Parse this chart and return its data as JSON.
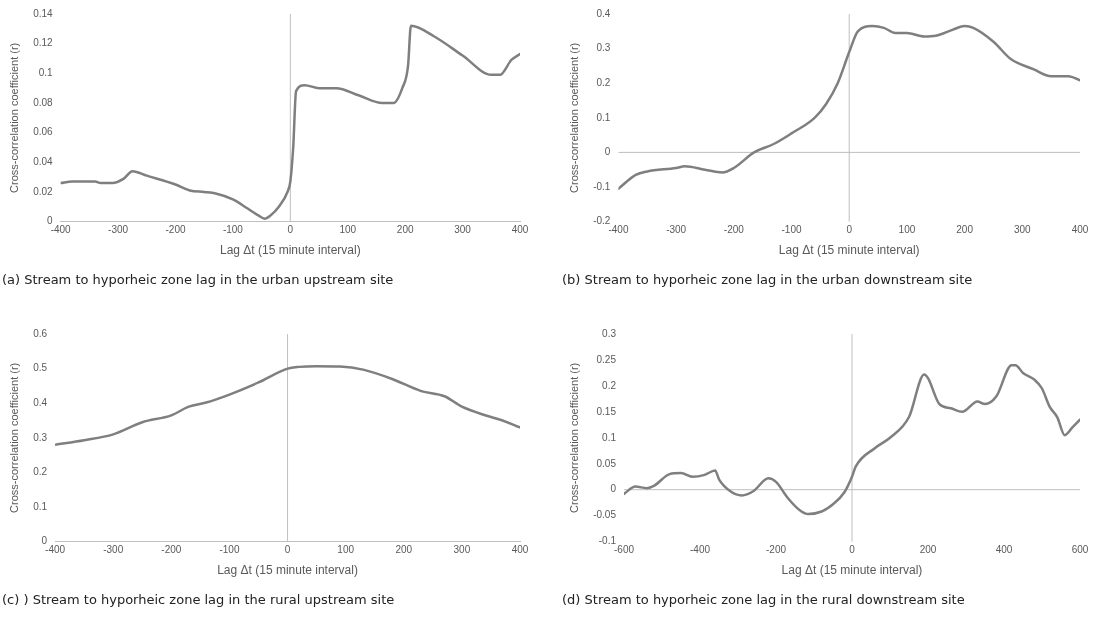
{
  "chart_data": [
    {
      "type": "line",
      "xlabel": "Lag Δt (15 minute interval)",
      "ylabel": "Cross-correlation coefficient (r)",
      "annotations": [
        "(a) Stream to hyporheic zone lag in the urban upstream site"
      ],
      "xlim": [
        -400,
        400
      ],
      "xticks": [
        -400,
        -300,
        -200,
        -100,
        0,
        100,
        200,
        300,
        400
      ],
      "ylim": [
        0,
        0.14
      ],
      "yticks": [
        0,
        0.02,
        0.04,
        0.06,
        0.08,
        0.1,
        0.12,
        0.14
      ],
      "grid": false,
      "legend": false,
      "marker": "none",
      "ref_lines": [
        {
          "axis": "x",
          "value": 0,
          "color": "#bfbfbf"
        }
      ],
      "series": [
        {
          "color": "#7f7f7f",
          "x": [
            -400,
            -380,
            -340,
            -330,
            -310,
            -290,
            -275,
            -250,
            -200,
            -175,
            -150,
            -130,
            -100,
            -75,
            -55,
            -45,
            -35,
            -20,
            -5,
            0,
            5,
            10,
            25,
            50,
            80,
            120,
            160,
            180,
            195,
            205,
            210,
            250,
            300,
            350,
            365,
            385,
            400
          ],
          "values": [
            0.026,
            0.027,
            0.027,
            0.026,
            0.026,
            0.029,
            0.034,
            0.031,
            0.025,
            0.021,
            0.02,
            0.019,
            0.015,
            0.009,
            0.004,
            0.002,
            0.004,
            0.01,
            0.02,
            0.027,
            0.05,
            0.088,
            0.092,
            0.09,
            0.09,
            0.085,
            0.08,
            0.08,
            0.09,
            0.105,
            0.132,
            0.125,
            0.112,
            0.099,
            0.099,
            0.109,
            0.113
          ]
        }
      ]
    },
    {
      "type": "line",
      "xlabel": "Lag Δt (15 minute interval)",
      "ylabel": "Cross-correlation coefficient (r)",
      "annotations": [
        "(b) Stream to hyporheic zone lag in the urban downstream site"
      ],
      "xlim": [
        -400,
        400
      ],
      "xticks": [
        -400,
        -300,
        -200,
        -100,
        0,
        100,
        200,
        300,
        400
      ],
      "ylim": [
        -0.2,
        0.4
      ],
      "yticks": [
        -0.2,
        -0.1,
        0,
        0.1,
        0.2,
        0.3,
        0.4
      ],
      "grid": false,
      "legend": false,
      "marker": "none",
      "ref_lines": [
        {
          "axis": "x",
          "value": 0,
          "color": "#bfbfbf"
        },
        {
          "axis": "y",
          "value": 0,
          "color": "#bfbfbf"
        }
      ],
      "series": [
        {
          "color": "#7f7f7f",
          "x": [
            -400,
            -370,
            -350,
            -300,
            -285,
            -250,
            -220,
            -200,
            -165,
            -130,
            -100,
            -60,
            -40,
            -20,
            0,
            15,
            40,
            60,
            80,
            100,
            130,
            150,
            180,
            200,
            215,
            250,
            280,
            320,
            350,
            380,
            400
          ],
          "values": [
            -0.105,
            -0.065,
            -0.055,
            -0.045,
            -0.04,
            -0.05,
            -0.058,
            -0.045,
            0,
            0.025,
            0.055,
            0.1,
            0.14,
            0.2,
            0.29,
            0.35,
            0.365,
            0.36,
            0.345,
            0.345,
            0.335,
            0.337,
            0.355,
            0.365,
            0.36,
            0.32,
            0.27,
            0.24,
            0.22,
            0.22,
            0.208
          ]
        }
      ]
    },
    {
      "type": "line",
      "xlabel": "Lag Δt (15 minute interval)",
      "ylabel": "Cross-correlation coefficient (r)",
      "annotations": [
        "(c) ) Stream to hyporheic zone lag in the rural upstream site"
      ],
      "xlim": [
        -400,
        400
      ],
      "xticks": [
        -400,
        -300,
        -200,
        -100,
        0,
        100,
        200,
        300,
        400
      ],
      "ylim": [
        0,
        0.6
      ],
      "yticks": [
        0,
        0.1,
        0.2,
        0.3,
        0.4,
        0.5,
        0.6
      ],
      "grid": false,
      "legend": false,
      "marker": "none",
      "ref_lines": [
        {
          "axis": "x",
          "value": 0,
          "color": "#bfbfbf"
        }
      ],
      "series": [
        {
          "color": "#7f7f7f",
          "x": [
            -400,
            -350,
            -300,
            -250,
            -200,
            -170,
            -140,
            -100,
            -50,
            0,
            20,
            50,
            90,
            130,
            180,
            230,
            270,
            300,
            340,
            370,
            400
          ],
          "values": [
            0.28,
            0.293,
            0.31,
            0.345,
            0.365,
            0.39,
            0.402,
            0.425,
            0.46,
            0.5,
            0.505,
            0.507,
            0.506,
            0.497,
            0.47,
            0.435,
            0.42,
            0.39,
            0.365,
            0.35,
            0.33
          ]
        }
      ]
    },
    {
      "type": "line",
      "xlabel": "Lag Δt (15 minute interval)",
      "ylabel": "Cross-correlation coefficient (r)",
      "annotations": [
        "(d) Stream to hyporheic zone lag in the rural downstream site"
      ],
      "xlim": [
        -600,
        600
      ],
      "xticks": [
        -600,
        -400,
        -200,
        0,
        200,
        400,
        600
      ],
      "ylim": [
        -0.1,
        0.3
      ],
      "yticks": [
        -0.1,
        -0.05,
        0,
        0.05,
        0.1,
        0.15,
        0.2,
        0.25,
        0.3
      ],
      "grid": false,
      "legend": false,
      "marker": "none",
      "ref_lines": [
        {
          "axis": "x",
          "value": 0,
          "color": "#bfbfbf"
        },
        {
          "axis": "y",
          "value": 0,
          "color": "#bfbfbf"
        }
      ],
      "series": [
        {
          "color": "#7f7f7f",
          "x": [
            -600,
            -570,
            -540,
            -520,
            -480,
            -450,
            -420,
            -390,
            -360,
            -350,
            -320,
            -290,
            -260,
            -220,
            -200,
            -170,
            -140,
            -115,
            -80,
            -50,
            -20,
            0,
            10,
            60,
            100,
            150,
            190,
            200,
            230,
            260,
            290,
            330,
            350,
            380,
            420,
            430,
            450,
            480,
            500,
            520,
            540,
            560,
            580,
            600
          ],
          "values": [
            -0.008,
            0.006,
            0.003,
            0.008,
            0.03,
            0.032,
            0.025,
            0.028,
            0.037,
            0.02,
            -0.003,
            -0.011,
            -0.003,
            0.022,
            0.015,
            -0.015,
            -0.038,
            -0.047,
            -0.042,
            -0.028,
            -0.005,
            0.025,
            0.045,
            0.08,
            0.1,
            0.14,
            0.222,
            0.215,
            0.165,
            0.157,
            0.15,
            0.17,
            0.165,
            0.18,
            0.24,
            0.24,
            0.225,
            0.212,
            0.195,
            0.16,
            0.14,
            0.105,
            0.12,
            0.135
          ]
        }
      ]
    }
  ]
}
